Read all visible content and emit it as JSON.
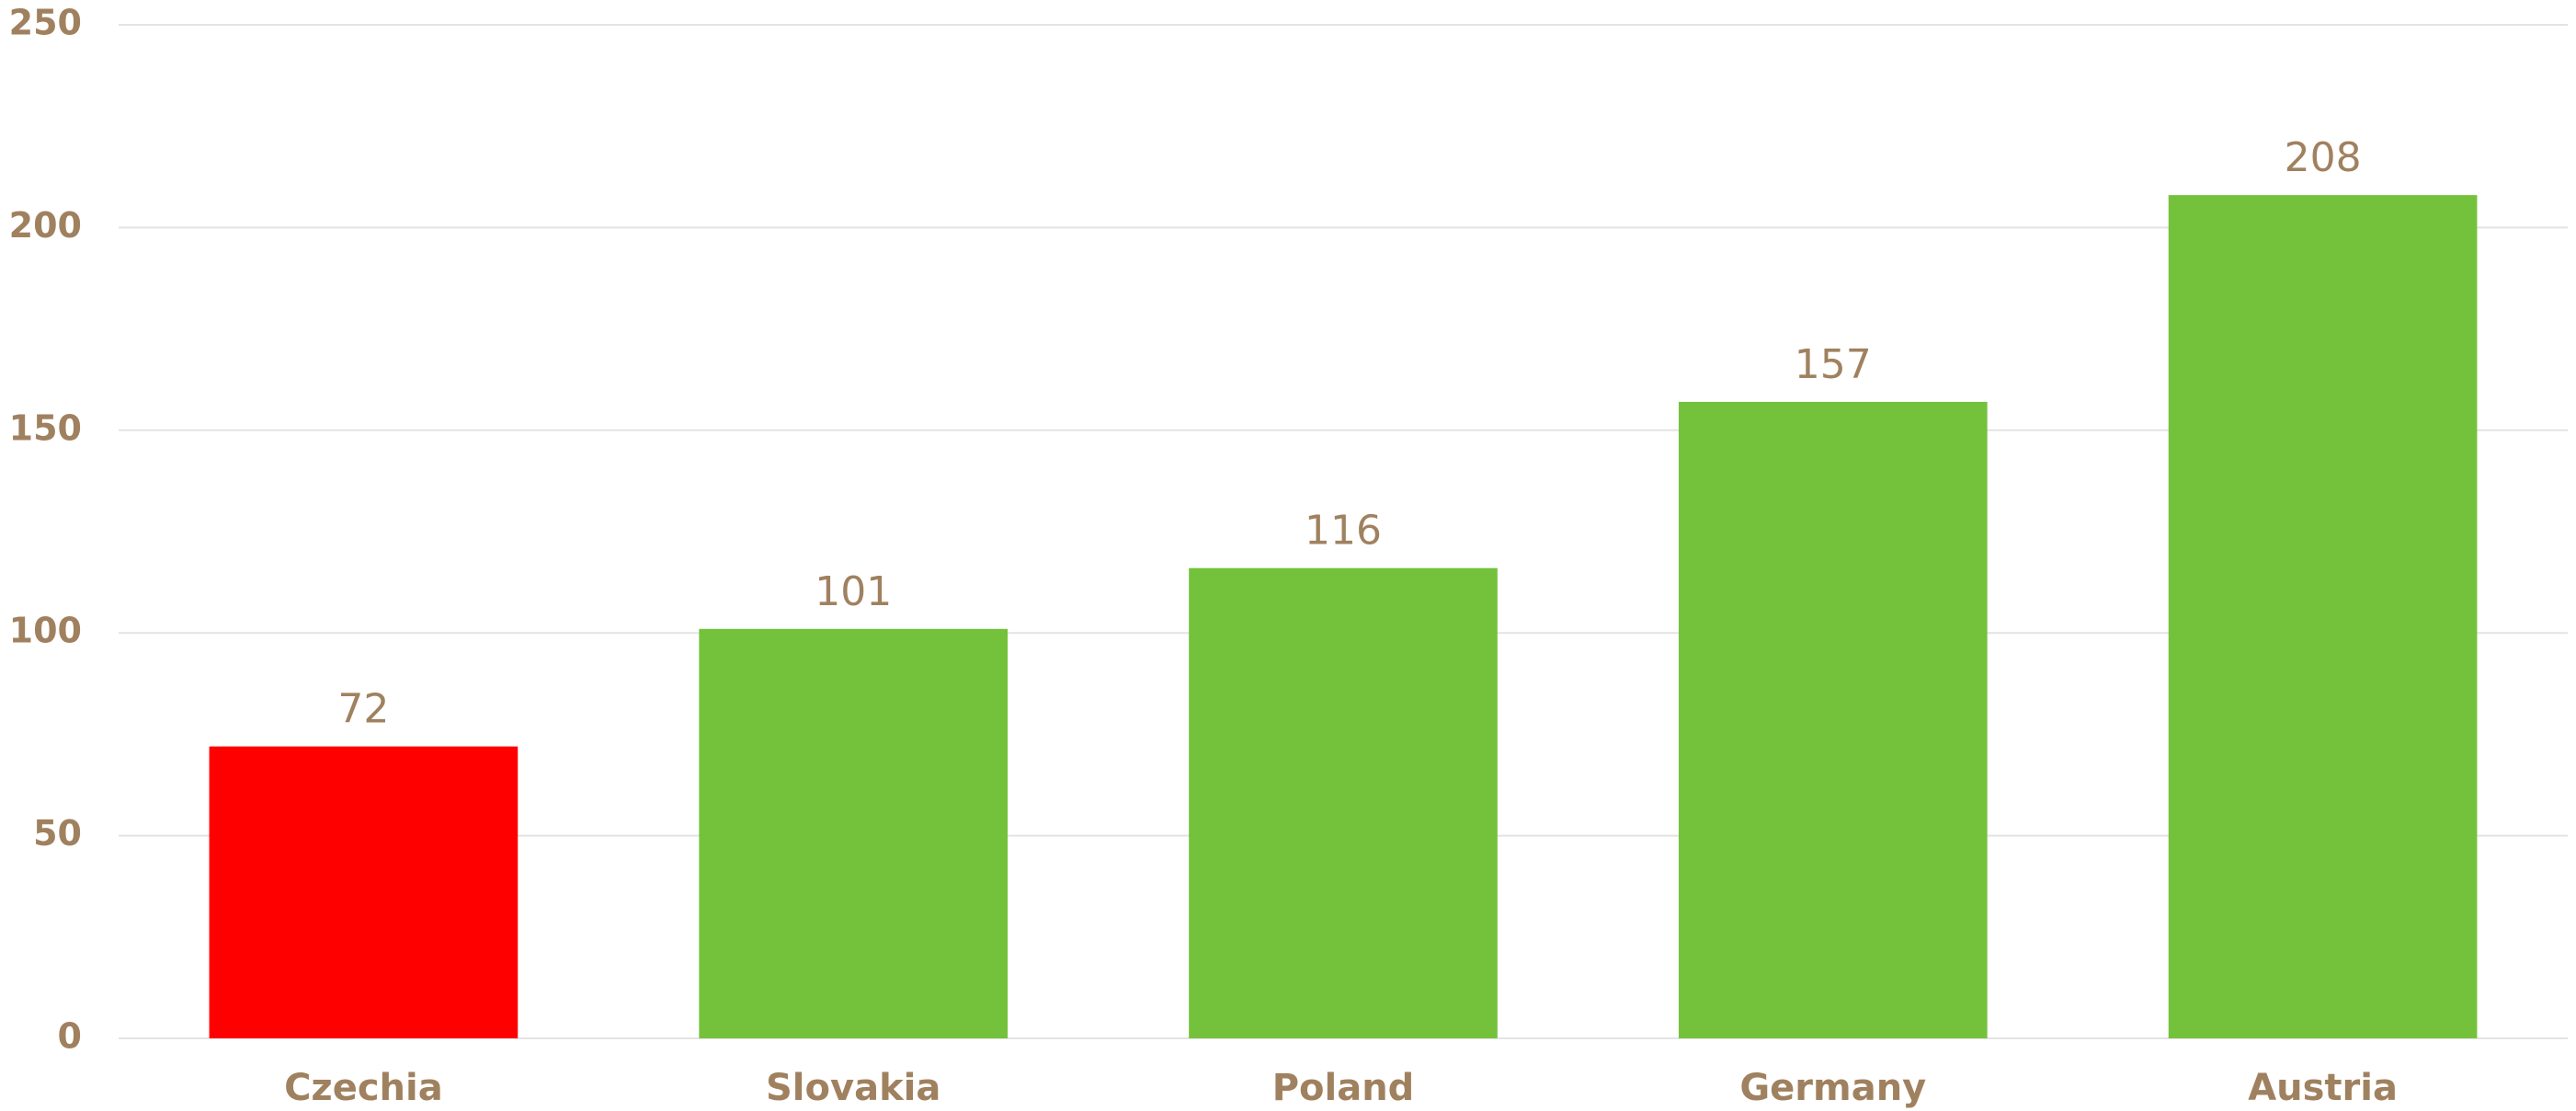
{
  "chart_data": {
    "type": "bar",
    "categories": [
      "Czechia",
      "Slovakia",
      "Poland",
      "Germany",
      "Austria"
    ],
    "values": [
      72,
      101,
      116,
      157,
      208
    ],
    "colors": [
      "#ff0000",
      "#74c23c",
      "#74c23c",
      "#74c23c",
      "#74c23c"
    ],
    "ylim": [
      0,
      250
    ],
    "yticks": [
      0,
      50,
      100,
      150,
      200,
      250
    ],
    "grid": true
  }
}
